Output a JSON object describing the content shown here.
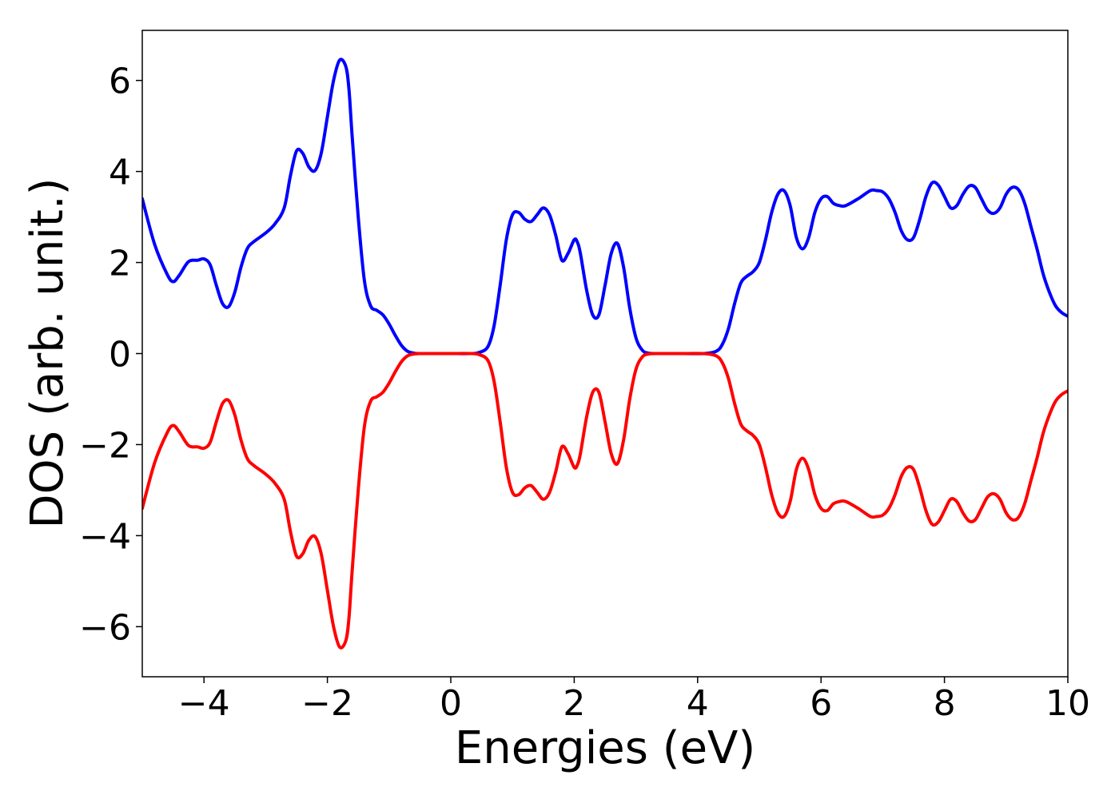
{
  "chart_data": {
    "type": "line",
    "xlabel": "Energies (eV)",
    "ylabel": "DOS (arb. unit.)",
    "xlim": [
      -5,
      10
    ],
    "ylim": [
      -7.1,
      7.1
    ],
    "xticks": [
      -4,
      -2,
      0,
      2,
      4,
      6,
      8,
      10
    ],
    "yticks": [
      -6,
      -4,
      -2,
      0,
      2,
      4,
      6
    ],
    "xtick_labels": [
      "−4",
      "−2",
      "0",
      "2",
      "4",
      "6",
      "8",
      "10"
    ],
    "ytick_labels": [
      "−6",
      "−4",
      "−2",
      "0",
      "2",
      "4",
      "6"
    ],
    "grid": false,
    "legend": false,
    "series": [
      {
        "color": "#0000ff",
        "x": [
          -5.0,
          -4.8,
          -4.6,
          -4.5,
          -4.4,
          -4.25,
          -4.1,
          -4.0,
          -3.9,
          -3.8,
          -3.7,
          -3.6,
          -3.5,
          -3.4,
          -3.3,
          -3.2,
          -3.0,
          -2.85,
          -2.7,
          -2.6,
          -2.5,
          -2.4,
          -2.3,
          -2.2,
          -2.1,
          -2.0,
          -1.9,
          -1.8,
          -1.7,
          -1.65,
          -1.6,
          -1.5,
          -1.4,
          -1.3,
          -1.2,
          -1.1,
          -1.0,
          -0.9,
          -0.8,
          -0.7,
          -0.6,
          -0.5,
          -0.3,
          0.0,
          0.3,
          0.45,
          0.6,
          0.7,
          0.8,
          0.9,
          1.0,
          1.1,
          1.2,
          1.3,
          1.4,
          1.5,
          1.6,
          1.7,
          1.8,
          1.9,
          2.0,
          2.05,
          2.1,
          2.2,
          2.3,
          2.4,
          2.5,
          2.6,
          2.7,
          2.8,
          2.9,
          3.0,
          3.1,
          3.2,
          3.4,
          3.8,
          4.1,
          4.3,
          4.4,
          4.5,
          4.6,
          4.7,
          4.8,
          4.9,
          5.0,
          5.1,
          5.2,
          5.3,
          5.4,
          5.5,
          5.6,
          5.7,
          5.8,
          5.9,
          6.0,
          6.1,
          6.2,
          6.3,
          6.4,
          6.6,
          6.8,
          6.9,
          7.0,
          7.1,
          7.2,
          7.3,
          7.4,
          7.5,
          7.6,
          7.7,
          7.8,
          7.9,
          8.0,
          8.1,
          8.2,
          8.3,
          8.4,
          8.5,
          8.6,
          8.7,
          8.8,
          8.9,
          9.0,
          9.1,
          9.2,
          9.3,
          9.4,
          9.5,
          9.6,
          9.7,
          9.8,
          9.9,
          10.0
        ],
        "y": [
          3.4,
          2.4,
          1.75,
          1.58,
          1.72,
          2.02,
          2.05,
          2.08,
          1.95,
          1.5,
          1.1,
          1.03,
          1.35,
          1.9,
          2.3,
          2.45,
          2.65,
          2.85,
          3.2,
          3.9,
          4.45,
          4.4,
          4.1,
          4.02,
          4.4,
          5.2,
          6.0,
          6.45,
          6.3,
          5.8,
          4.8,
          3.0,
          1.6,
          1.05,
          0.95,
          0.85,
          0.65,
          0.4,
          0.18,
          0.05,
          0.01,
          0.0,
          0.0,
          0.0,
          0.0,
          0.02,
          0.15,
          0.6,
          1.5,
          2.5,
          3.05,
          3.1,
          2.95,
          2.9,
          3.05,
          3.2,
          3.05,
          2.6,
          2.05,
          2.2,
          2.5,
          2.45,
          2.2,
          1.4,
          0.85,
          0.85,
          1.5,
          2.2,
          2.42,
          1.9,
          1.0,
          0.35,
          0.08,
          0.01,
          0.0,
          0.0,
          0.0,
          0.05,
          0.2,
          0.55,
          1.1,
          1.55,
          1.7,
          1.8,
          2.0,
          2.5,
          3.1,
          3.5,
          3.58,
          3.25,
          2.55,
          2.3,
          2.55,
          3.1,
          3.4,
          3.45,
          3.3,
          3.25,
          3.25,
          3.4,
          3.58,
          3.58,
          3.55,
          3.4,
          3.1,
          2.7,
          2.5,
          2.55,
          2.95,
          3.45,
          3.75,
          3.7,
          3.45,
          3.2,
          3.25,
          3.5,
          3.68,
          3.65,
          3.4,
          3.15,
          3.08,
          3.2,
          3.5,
          3.65,
          3.6,
          3.3,
          2.8,
          2.3,
          1.75,
          1.35,
          1.05,
          0.9,
          0.82
        ]
      },
      {
        "color": "#ff0000",
        "x": [
          -5.0,
          -4.8,
          -4.6,
          -4.5,
          -4.4,
          -4.25,
          -4.1,
          -4.0,
          -3.9,
          -3.8,
          -3.7,
          -3.6,
          -3.5,
          -3.4,
          -3.3,
          -3.2,
          -3.0,
          -2.85,
          -2.7,
          -2.6,
          -2.5,
          -2.4,
          -2.3,
          -2.2,
          -2.1,
          -2.0,
          -1.9,
          -1.8,
          -1.7,
          -1.65,
          -1.6,
          -1.5,
          -1.4,
          -1.3,
          -1.2,
          -1.1,
          -1.0,
          -0.9,
          -0.8,
          -0.7,
          -0.6,
          -0.5,
          -0.3,
          0.0,
          0.3,
          0.45,
          0.6,
          0.7,
          0.8,
          0.9,
          1.0,
          1.1,
          1.2,
          1.3,
          1.4,
          1.5,
          1.6,
          1.7,
          1.8,
          1.9,
          2.0,
          2.05,
          2.1,
          2.2,
          2.3,
          2.4,
          2.5,
          2.6,
          2.7,
          2.8,
          2.9,
          3.0,
          3.1,
          3.2,
          3.4,
          3.8,
          4.1,
          4.3,
          4.4,
          4.5,
          4.6,
          4.7,
          4.8,
          4.9,
          5.0,
          5.1,
          5.2,
          5.3,
          5.4,
          5.5,
          5.6,
          5.7,
          5.8,
          5.9,
          6.0,
          6.1,
          6.2,
          6.3,
          6.4,
          6.6,
          6.8,
          6.9,
          7.0,
          7.1,
          7.2,
          7.3,
          7.4,
          7.5,
          7.6,
          7.7,
          7.8,
          7.9,
          8.0,
          8.1,
          8.2,
          8.3,
          8.4,
          8.5,
          8.6,
          8.7,
          8.8,
          8.9,
          9.0,
          9.1,
          9.2,
          9.3,
          9.4,
          9.5,
          9.6,
          9.7,
          9.8,
          9.9,
          10.0
        ],
        "y": [
          -3.4,
          -2.4,
          -1.75,
          -1.58,
          -1.72,
          -2.02,
          -2.05,
          -2.08,
          -1.95,
          -1.5,
          -1.1,
          -1.03,
          -1.35,
          -1.9,
          -2.3,
          -2.45,
          -2.65,
          -2.85,
          -3.2,
          -3.9,
          -4.45,
          -4.4,
          -4.1,
          -4.02,
          -4.4,
          -5.2,
          -6.0,
          -6.45,
          -6.3,
          -5.8,
          -4.8,
          -3.0,
          -1.6,
          -1.05,
          -0.95,
          -0.85,
          -0.65,
          -0.4,
          -0.18,
          -0.05,
          -0.01,
          0.0,
          0.0,
          0.0,
          0.0,
          -0.02,
          -0.15,
          -0.6,
          -1.5,
          -2.5,
          -3.05,
          -3.1,
          -2.95,
          -2.9,
          -3.05,
          -3.2,
          -3.05,
          -2.6,
          -2.05,
          -2.2,
          -2.5,
          -2.45,
          -2.2,
          -1.4,
          -0.85,
          -0.85,
          -1.5,
          -2.2,
          -2.42,
          -1.9,
          -1.0,
          -0.35,
          -0.08,
          -0.01,
          0.0,
          0.0,
          0.0,
          -0.05,
          -0.2,
          -0.55,
          -1.1,
          -1.55,
          -1.7,
          -1.8,
          -2.0,
          -2.5,
          -3.1,
          -3.5,
          -3.58,
          -3.25,
          -2.55,
          -2.3,
          -2.55,
          -3.1,
          -3.4,
          -3.45,
          -3.3,
          -3.25,
          -3.25,
          -3.4,
          -3.58,
          -3.58,
          -3.55,
          -3.4,
          -3.1,
          -2.7,
          -2.5,
          -2.55,
          -2.95,
          -3.45,
          -3.75,
          -3.7,
          -3.45,
          -3.2,
          -3.25,
          -3.5,
          -3.68,
          -3.65,
          -3.4,
          -3.15,
          -3.08,
          -3.2,
          -3.5,
          -3.65,
          -3.6,
          -3.3,
          -2.8,
          -2.3,
          -1.75,
          -1.35,
          -1.05,
          -0.9,
          -0.82
        ]
      }
    ]
  }
}
